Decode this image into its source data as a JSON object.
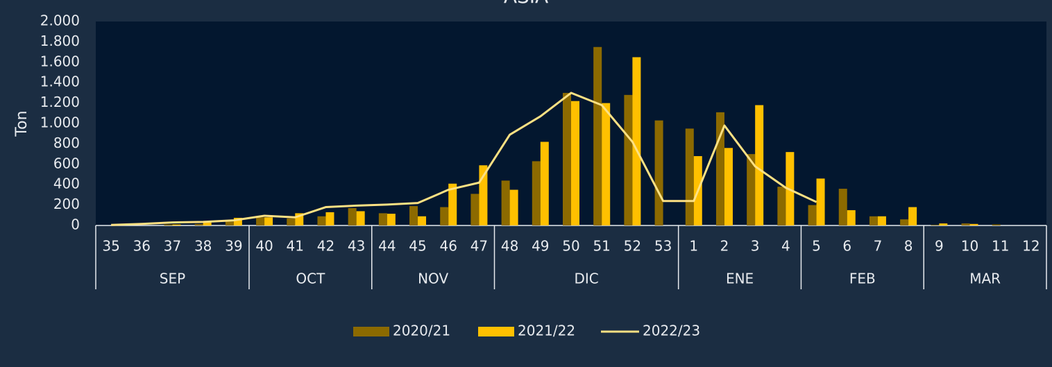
{
  "chart_data": {
    "type": "bar",
    "title": "ASIA",
    "y_label": "Ton",
    "groups": [
      {
        "label": "SEP",
        "categories": [
          "35",
          "36",
          "37",
          "38",
          "39"
        ]
      },
      {
        "label": "OCT",
        "categories": [
          "40",
          "41",
          "42",
          "43"
        ]
      },
      {
        "label": "NOV",
        "categories": [
          "44",
          "45",
          "46",
          "47"
        ]
      },
      {
        "label": "DIC",
        "categories": [
          "48",
          "49",
          "50",
          "51",
          "52",
          "53"
        ]
      },
      {
        "label": "ENE",
        "categories": [
          "1",
          "2",
          "3",
          "4"
        ]
      },
      {
        "label": "FEB",
        "categories": [
          "5",
          "6",
          "7",
          "8"
        ]
      },
      {
        "label": "MAR",
        "categories": [
          "9",
          "10",
          "11",
          "12"
        ]
      }
    ],
    "series": [
      {
        "name": "2020/21",
        "type": "bar",
        "color": "#8c6a00",
        "values": [
          0,
          0,
          10,
          15,
          40,
          80,
          70,
          90,
          170,
          120,
          190,
          180,
          310,
          440,
          630,
          1300,
          1750,
          1280,
          1030,
          950,
          1110,
          700,
          380,
          200,
          360,
          90,
          60,
          5,
          20,
          10,
          0
        ]
      },
      {
        "name": "2021/22",
        "type": "bar",
        "color": "#ffc000",
        "values": [
          0,
          0,
          10,
          40,
          75,
          80,
          120,
          130,
          140,
          115,
          90,
          410,
          590,
          350,
          820,
          1220,
          1200,
          1650,
          null,
          680,
          760,
          1180,
          720,
          460,
          150,
          90,
          180,
          20,
          15,
          0,
          0
        ]
      },
      {
        "name": "2022/23",
        "type": "line",
        "color": "#fde183",
        "values": [
          5,
          15,
          30,
          35,
          50,
          95,
          80,
          180,
          195,
          205,
          220,
          350,
          420,
          890,
          1070,
          1300,
          1180,
          820,
          240,
          240,
          980,
          580,
          370,
          230,
          null,
          null,
          null,
          null,
          null,
          null,
          null
        ]
      }
    ],
    "ylim": [
      0,
      2000
    ],
    "yticks": [
      0,
      200,
      400,
      600,
      800,
      {
        "value": 1000,
        "label": "1.000"
      },
      {
        "value": 1200,
        "label": "1.200"
      },
      {
        "value": 1400,
        "label": "1.400"
      },
      {
        "value": 1600,
        "label": "1.600"
      },
      {
        "value": 1800,
        "label": "1.800"
      },
      {
        "value": 2000,
        "label": "2.000"
      }
    ]
  }
}
